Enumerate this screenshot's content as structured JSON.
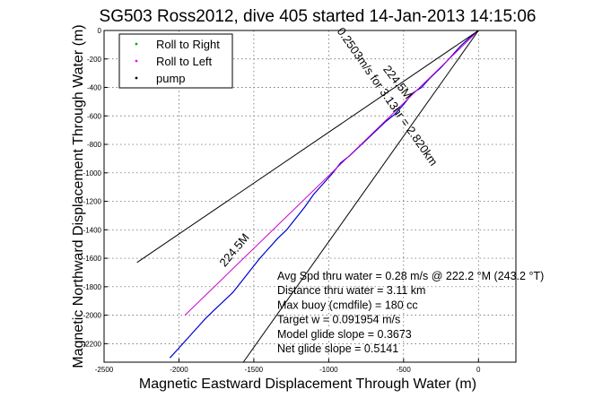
{
  "chart_data": {
    "type": "line",
    "title": "SG503 Ross2012, dive 405 started 14-Jan-2013 14:15:06",
    "xlabel": "Magnetic Eastward Displacement Through Water (m)",
    "ylabel": "Magnetic Northward Displacement Through Water (m)",
    "xlim": [
      -2500,
      250
    ],
    "ylim": [
      -2330,
      0
    ],
    "x_ticks": [
      -2500,
      -2000,
      -1500,
      -1000,
      -500,
      0
    ],
    "y_ticks": [
      0,
      -200,
      -400,
      -600,
      -800,
      -1000,
      -1200,
      -1400,
      -1600,
      -1800,
      -2000,
      -2200
    ],
    "grid": true,
    "legend_position": "top-left",
    "legend": [
      {
        "label": "Roll to Right",
        "color": "#00b000",
        "marker": "dot"
      },
      {
        "label": "Roll to Left",
        "color": "#ff00ff",
        "marker": "dot"
      },
      {
        "label": "pump",
        "color": "#000000",
        "marker": "dot"
      }
    ],
    "series": [
      {
        "name": "",
        "color": "#0000cc",
        "x": [
          0,
          -60,
          -120,
          -180,
          -250,
          -320,
          -380,
          -440,
          -500,
          -560,
          -620,
          -680,
          -740,
          -800,
          -860,
          -920,
          -980,
          -1040,
          -1100,
          -1160,
          -1220,
          -1280,
          -1340,
          -1400,
          -1460,
          -1520,
          -1580,
          -1640,
          -1700,
          -1760,
          -1820,
          -1880,
          -1940,
          -2000,
          -2060
        ],
        "y": [
          0,
          -50,
          -110,
          -180,
          -260,
          -330,
          -400,
          -440,
          -520,
          -590,
          -640,
          -700,
          -760,
          -820,
          -880,
          -930,
          -1010,
          -1080,
          -1150,
          -1240,
          -1320,
          -1400,
          -1460,
          -1530,
          -1600,
          -1680,
          -1760,
          -1840,
          -1900,
          -1960,
          -2020,
          -2090,
          -2160,
          -2230,
          -2300
        ]
      },
      {
        "name": "",
        "color": "#cc00cc",
        "x": [
          0,
          -1960
        ],
        "y": [
          0,
          -2000
        ]
      },
      {
        "name": "",
        "color": "#000000",
        "x": [
          0,
          -2280
        ],
        "y": [
          0,
          -1630
        ]
      },
      {
        "name": "",
        "color": "#000000",
        "x": [
          0,
          -1570
        ],
        "y": [
          0,
          -2330
        ]
      }
    ],
    "annotations": [
      {
        "text": "224.5M",
        "x": -560,
        "y": -380,
        "angle": 52
      },
      {
        "text": "0.2503m/s for 3.13hr = 2.820km",
        "x": -630,
        "y": -480,
        "angle": 55
      },
      {
        "text": "224.5M",
        "x": -1610,
        "y": -1560,
        "angle": -50
      }
    ],
    "notes": [
      "Avg Spd thru water = 0.28 m/s @ 222.2  °M (243.2 °T)",
      "Distance thru water = 3.11 km",
      "Max buoy (cmdfile) = 180 cc",
      "Target w = 0.091954 m/s",
      "Model glide slope = 0.3673",
      "Net glide slope = 0.5141"
    ]
  }
}
